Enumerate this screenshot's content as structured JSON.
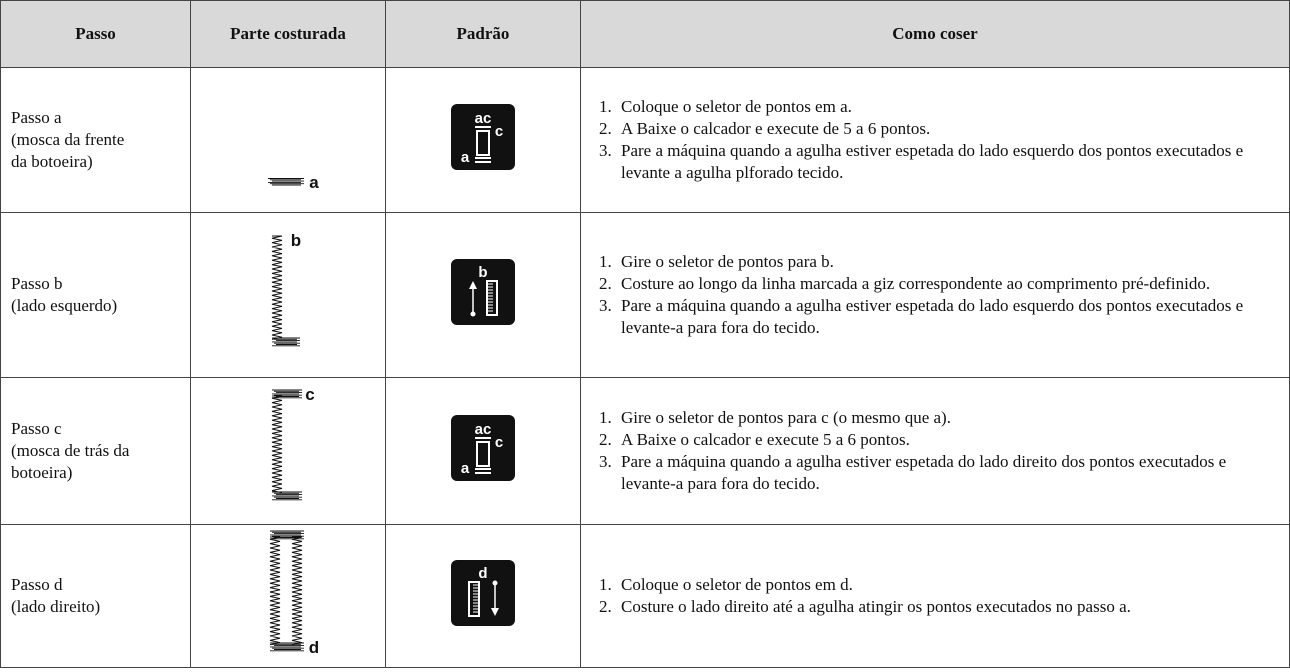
{
  "table": {
    "header": [
      "Passo",
      "Parte costurada",
      "Padrão",
      "Como coser"
    ],
    "rows": [
      {
        "step": [
          "Passo a",
          "(mosca da frente",
          "da botoeira)"
        ],
        "stitch_label": "a",
        "pattern_labels": [
          "ac",
          "c",
          "a"
        ],
        "instructions": [
          {
            "n": "1.",
            "text": "Coloque o seletor de pontos em a."
          },
          {
            "n": "2.",
            "text": "A Baixe o calcador e execute de 5 a 6 pontos."
          },
          {
            "n": "3.",
            "text": "Pare a máquina quando a agulha estiver espetada do lado esquerdo dos pontos executados e levante a agulha plforado tecido."
          }
        ]
      },
      {
        "step": [
          "Passo b",
          "(lado esquerdo)"
        ],
        "stitch_label": "b",
        "pattern_labels": [
          "b"
        ],
        "instructions": [
          {
            "n": "1.",
            "text": "Gire o seletor de pontos para b."
          },
          {
            "n": "2.",
            "text": "Costure ao longo da linha marcada a giz correspondente ao comprimento pré-definido."
          },
          {
            "n": "3.",
            "text": "Pare a máquina quando a agulha estiver espetada do lado esquerdo dos pontos executados e levante-a para fora do tecido."
          }
        ]
      },
      {
        "step": [
          "Passo c",
          "(mosca de trás da",
          "botoeira)"
        ],
        "stitch_label": "c",
        "pattern_labels": [
          "ac",
          "c",
          "a"
        ],
        "instructions": [
          {
            "n": "1.",
            "text": "Gire o seletor de pontos para c (o mesmo que a)."
          },
          {
            "n": "2.",
            "text": "A Baixe o calcador e execute 5 a 6 pontos."
          },
          {
            "n": "3.",
            "text": "Pare a máquina quando a agulha estiver espetada do lado direito dos pontos executados e levante-a para fora do tecido."
          }
        ]
      },
      {
        "step": [
          "Passo d",
          "(lado direito)"
        ],
        "stitch_label": "d",
        "pattern_labels": [
          "d"
        ],
        "instructions": [
          {
            "n": "1.",
            "text": "Coloque o seletor de pontos em d."
          },
          {
            "n": "2.",
            "text": "Costure o lado direito até a agulha atingir os pontos executados no passo a."
          }
        ]
      }
    ]
  }
}
